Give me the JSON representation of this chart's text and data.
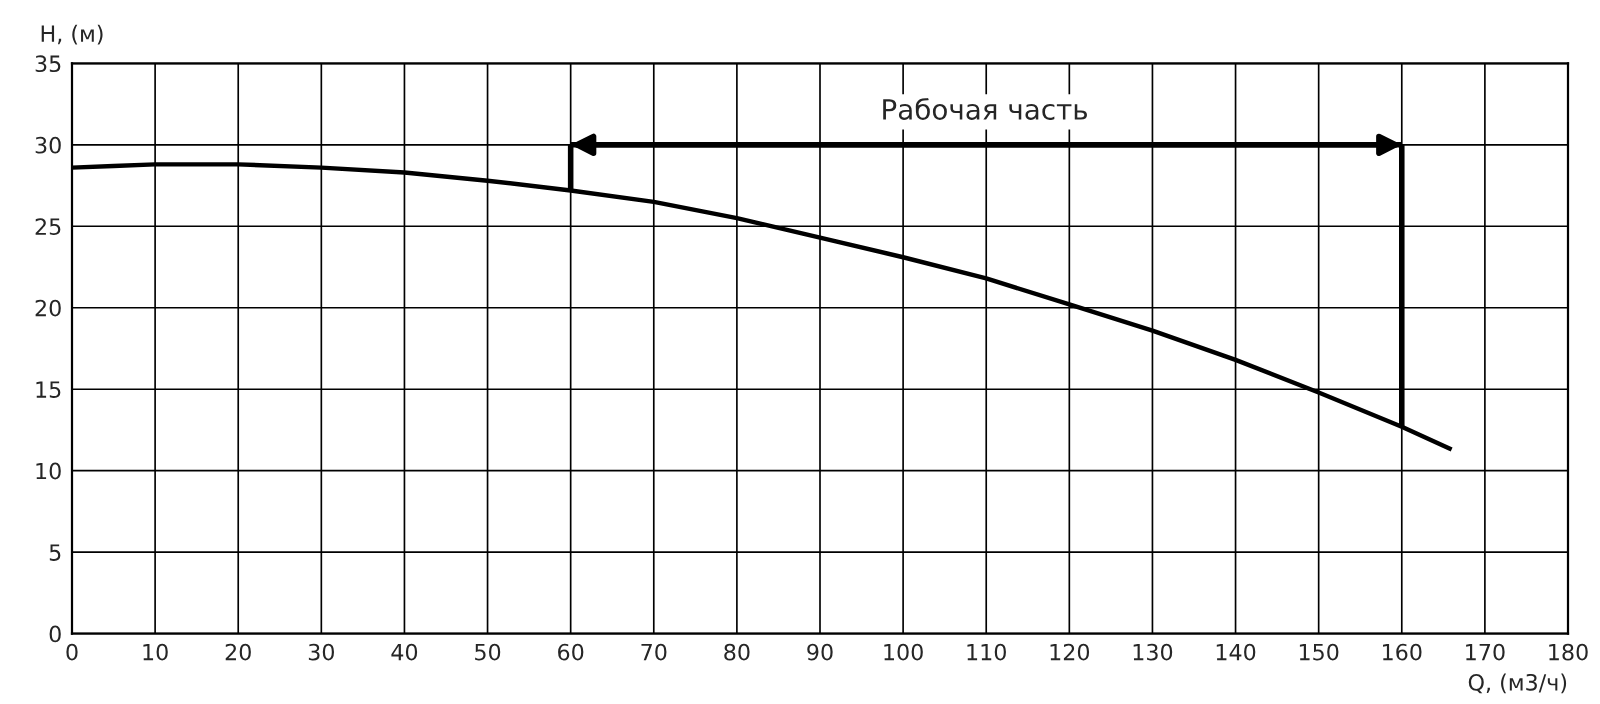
{
  "chart_data": {
    "type": "line",
    "xlabel": "Q, (м3/ч)",
    "ylabel": "H, (м)",
    "series": [
      {
        "color": "#000000",
        "x": [
          0,
          5,
          10,
          20,
          30,
          40,
          50,
          60,
          70,
          80,
          90,
          100,
          110,
          120,
          130,
          140,
          150,
          160,
          166
        ],
        "values": [
          28.6,
          28.7,
          28.8,
          28.8,
          28.6,
          28.3,
          27.8,
          27.2,
          26.5,
          25.5,
          24.3,
          23.1,
          21.8,
          20.2,
          18.6,
          16.8,
          14.8,
          12.7,
          11.3
        ]
      },
      {
        "type": "line",
        "color": "#000000",
        "x": [
          60,
          60
        ],
        "values": [
          27.2,
          30
        ]
      },
      {
        "type": "line",
        "color": "#000000",
        "x": [
          160,
          160
        ],
        "values": [
          12.7,
          30
        ]
      },
      {
        "type": "line",
        "color": "#000000",
        "x": [
          60,
          160
        ],
        "values": [
          30,
          30
        ]
      }
    ],
    "xlim": [
      0,
      180
    ],
    "xticks": [
      0,
      10,
      20,
      30,
      40,
      50,
      60,
      70,
      80,
      90,
      100,
      110,
      120,
      130,
      140,
      150,
      160,
      170,
      180
    ],
    "ylim": [
      0,
      35
    ],
    "yticks": [
      0,
      5,
      10,
      15,
      20,
      25,
      30,
      35
    ],
    "grid": true,
    "line_style": "solid",
    "annotations": [
      "Рабочая часть"
    ]
  }
}
